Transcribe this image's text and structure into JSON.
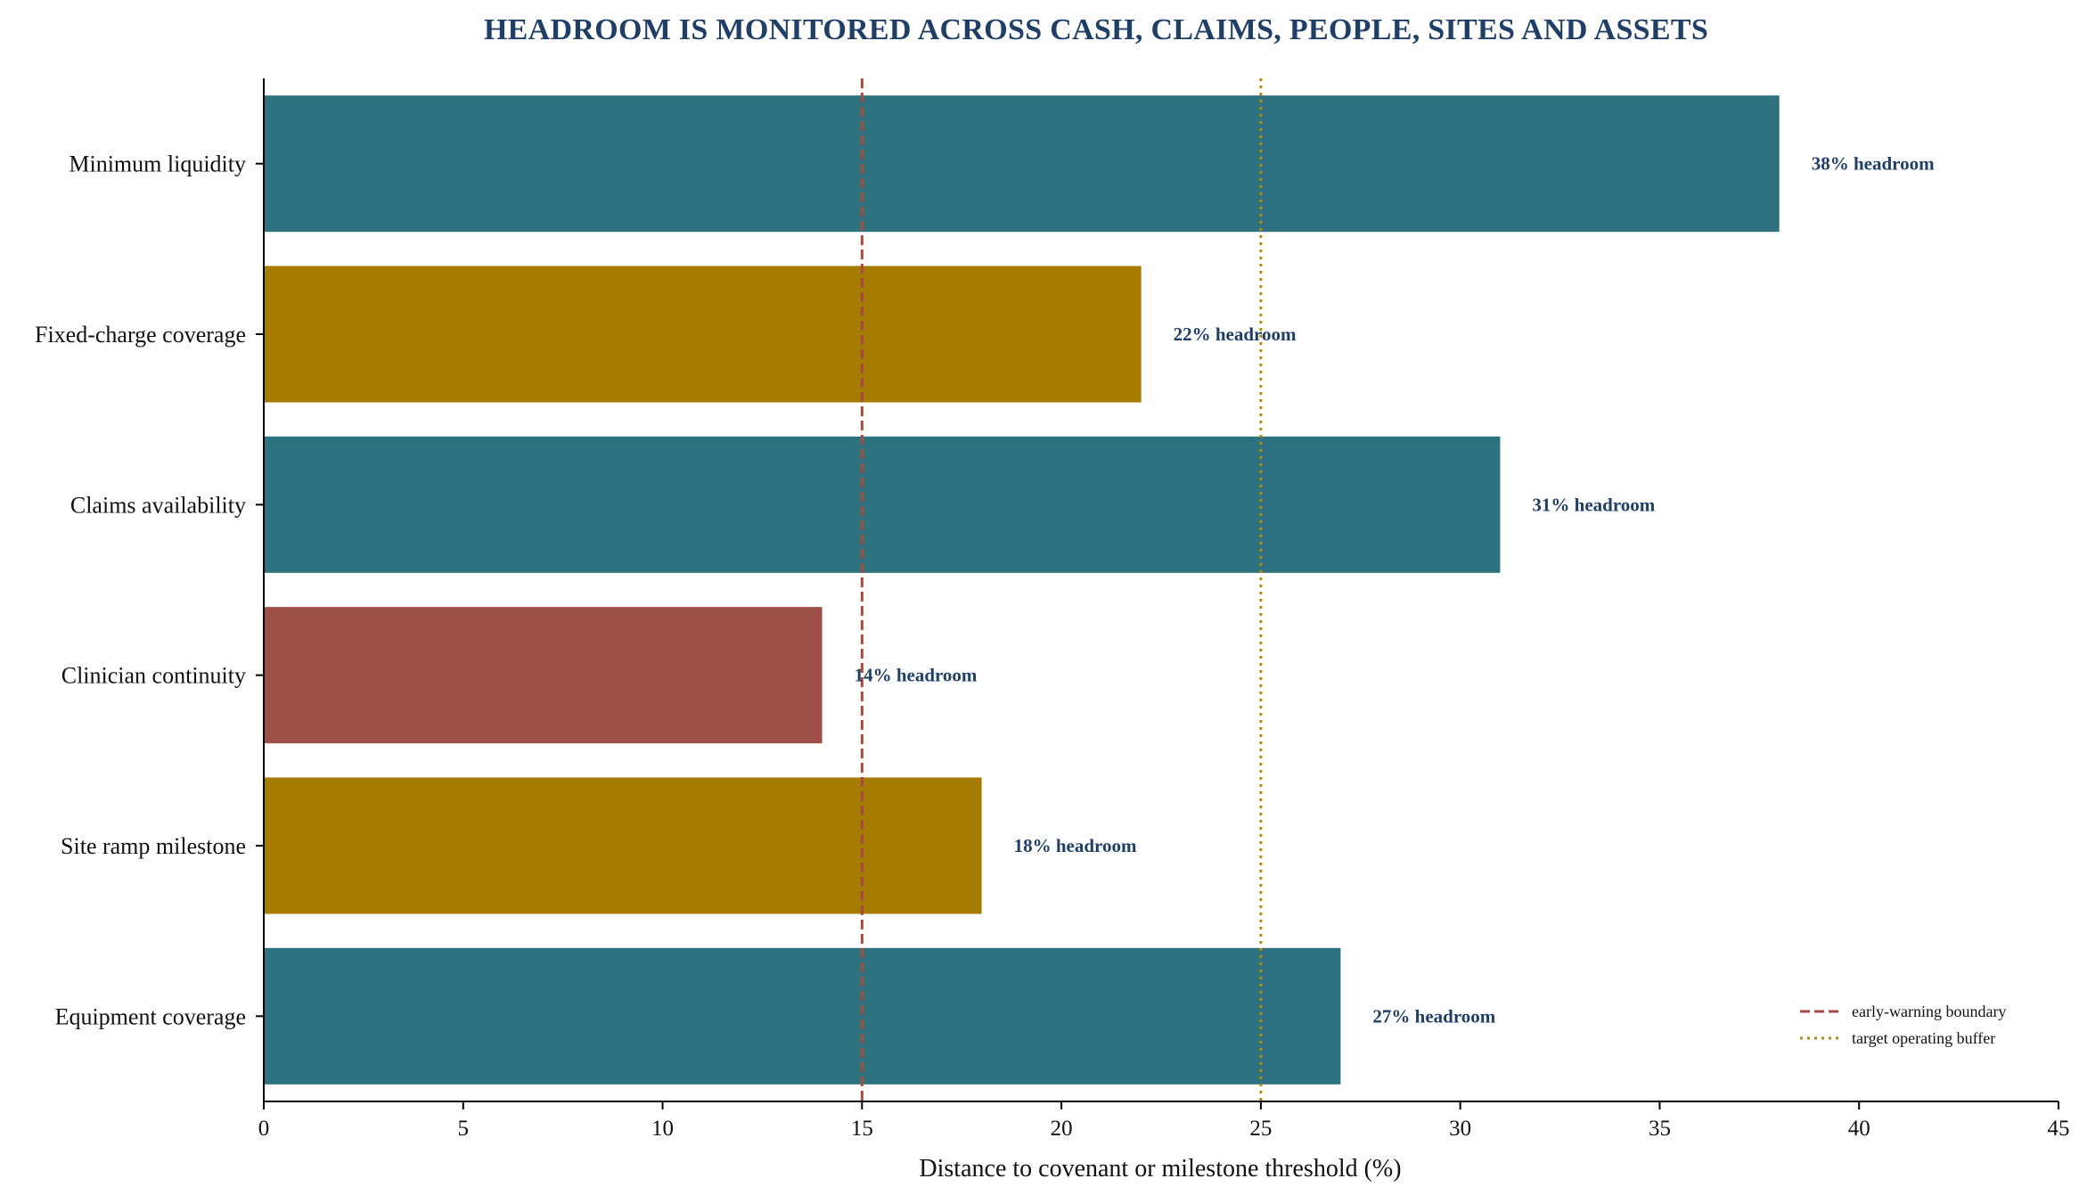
{
  "chart_data": {
    "type": "bar",
    "orientation": "horizontal",
    "title": "HEADROOM IS MONITORED ACROSS CASH, CLAIMS, PEOPLE, SITES AND ASSETS",
    "xlabel": "Distance to covenant or milestone threshold (%)",
    "ylabel": "",
    "xlim": [
      0,
      45
    ],
    "xticks": [
      0,
      5,
      10,
      15,
      20,
      25,
      30,
      35,
      40,
      45
    ],
    "grid": false,
    "legend_position": "bottom-right",
    "colors": {
      "title": "#1f3f66",
      "data_label": "#1f3f66",
      "teal": "#2e7280",
      "gold": "#a67c00",
      "red": "#9e4f47",
      "axis": "#000000"
    },
    "categories": [
      "Minimum liquidity",
      "Fixed-charge coverage",
      "Claims availability",
      "Clinician continuity",
      "Site ramp milestone",
      "Equipment coverage"
    ],
    "values": [
      38,
      22,
      31,
      14,
      18,
      27
    ],
    "bar_colors": [
      "#2e7280",
      "#a67c00",
      "#2e7280",
      "#9e4f47",
      "#a67c00",
      "#2e7280"
    ],
    "data_labels": [
      "38% headroom",
      "22% headroom",
      "31% headroom",
      "14% headroom",
      "18% headroom",
      "27% headroom"
    ],
    "reference_lines": [
      {
        "label": "early-warning boundary",
        "x": 15,
        "color": "#a84a42",
        "style": "dashed"
      },
      {
        "label": "target operating buffer",
        "x": 25,
        "color": "#b08a10",
        "style": "dotted"
      }
    ]
  }
}
